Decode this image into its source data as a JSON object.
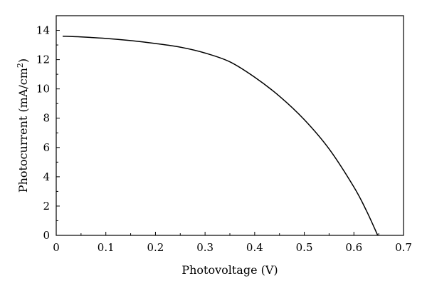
{
  "chart_data": {
    "type": "line",
    "xlabel": "Photovoltage (V)",
    "ylabel_main": "Photocurrent (mA/cm",
    "ylabel_sup": "2",
    "ylabel_close": ")",
    "xlim": [
      0,
      0.7
    ],
    "ylim": [
      0,
      15
    ],
    "xticks": [
      0,
      0.1,
      0.2,
      0.3,
      0.4,
      0.5,
      0.6,
      0.7
    ],
    "xtick_labels": [
      "0",
      "0.1",
      "0.2",
      "0.3",
      "0.4",
      "0.5",
      "0.6",
      "0.7"
    ],
    "yticks": [
      0,
      2,
      4,
      6,
      8,
      10,
      12,
      14
    ],
    "ytick_labels": [
      "0",
      "2",
      "4",
      "6",
      "8",
      "10",
      "12",
      "14"
    ],
    "grid": false,
    "series": [
      {
        "color": "#000000",
        "x": [
          0.013,
          0.05,
          0.1,
          0.15,
          0.2,
          0.25,
          0.3,
          0.35,
          0.4,
          0.45,
          0.5,
          0.55,
          0.6,
          0.625,
          0.648
        ],
        "y": [
          13.6,
          13.55,
          13.45,
          13.3,
          13.1,
          12.85,
          12.45,
          11.85,
          10.8,
          9.5,
          7.9,
          5.9,
          3.3,
          1.7,
          0.0
        ]
      }
    ]
  }
}
